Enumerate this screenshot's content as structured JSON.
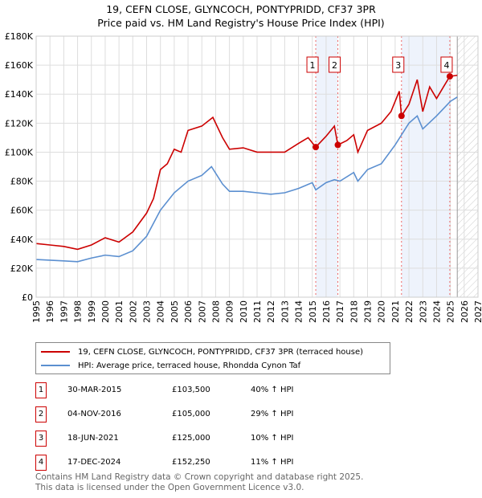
{
  "chart_data": {
    "type": "line",
    "title": "19, CEFN CLOSE, GLYNCOCH, PONTYPRIDD, CF37 3PR",
    "subtitle": "Price paid vs. HM Land Registry's House Price Index (HPI)",
    "xlim": [
      1995,
      2027
    ],
    "ylim": [
      0,
      180000
    ],
    "x_ticks": [
      "1995",
      "1996",
      "1997",
      "1998",
      "1999",
      "2000",
      "2001",
      "2002",
      "2003",
      "2004",
      "2005",
      "2006",
      "2007",
      "2008",
      "2009",
      "2010",
      "2011",
      "2012",
      "2013",
      "2014",
      "2015",
      "2016",
      "2017",
      "2018",
      "2019",
      "2020",
      "2021",
      "2022",
      "2023",
      "2024",
      "2025",
      "2026",
      "2027"
    ],
    "y_ticks": [
      {
        "v": 0,
        "label": "£0"
      },
      {
        "v": 20000,
        "label": "£20K"
      },
      {
        "v": 40000,
        "label": "£40K"
      },
      {
        "v": 60000,
        "label": "£60K"
      },
      {
        "v": 80000,
        "label": "£80K"
      },
      {
        "v": 100000,
        "label": "£100K"
      },
      {
        "v": 120000,
        "label": "£120K"
      },
      {
        "v": 140000,
        "label": "£140K"
      },
      {
        "v": 160000,
        "label": "£160K"
      },
      {
        "v": 180000,
        "label": "£180K"
      }
    ],
    "series": [
      {
        "name": "19, CEFN CLOSE, GLYNCOCH, PONTYPRIDD, CF37 3PR (terraced house)",
        "color": "#cc0000",
        "x": [
          1995,
          1996,
          1997,
          1998,
          1999,
          2000,
          2001,
          2002,
          2003,
          2003.5,
          2004,
          2004.5,
          2005,
          2005.5,
          2006,
          2007,
          2007.8,
          2008.5,
          2009,
          2010,
          2011,
          2012,
          2013,
          2014,
          2014.7,
          2015.25,
          2016,
          2016.6,
          2016.85,
          2017.5,
          2018,
          2018.3,
          2019,
          2020,
          2020.7,
          2021.3,
          2021.46,
          2022,
          2022.6,
          2023,
          2023.5,
          2024,
          2024.5,
          2024.96,
          2025.5
        ],
        "y": [
          37000,
          36000,
          35000,
          33000,
          36000,
          41000,
          38000,
          45000,
          58000,
          68000,
          88000,
          92000,
          102000,
          100000,
          115000,
          118000,
          124000,
          110000,
          102000,
          103000,
          100000,
          100000,
          100000,
          106000,
          110000,
          103500,
          111000,
          118000,
          105000,
          108000,
          112000,
          100000,
          115000,
          120000,
          128000,
          142000,
          125000,
          133000,
          150000,
          128000,
          145000,
          137000,
          145000,
          152250,
          153000
        ]
      },
      {
        "name": "HPI: Average price, terraced house, Rhondda Cynon Taf",
        "color": "#5b8fd0",
        "x": [
          1995,
          1996,
          1997,
          1998,
          1999,
          2000,
          2001,
          2002,
          2003,
          2004,
          2005,
          2006,
          2007,
          2007.7,
          2008.5,
          2009,
          2010,
          2011,
          2012,
          2013,
          2014,
          2015,
          2015.25,
          2016,
          2016.6,
          2017,
          2018,
          2018.3,
          2019,
          2020,
          2021,
          2022,
          2022.6,
          2023,
          2024,
          2025,
          2025.5
        ],
        "y": [
          26000,
          25500,
          25000,
          24500,
          27000,
          29000,
          28000,
          32000,
          42000,
          60000,
          72000,
          80000,
          84000,
          90000,
          78000,
          73000,
          73000,
          72000,
          71000,
          72000,
          75000,
          79000,
          74000,
          79000,
          81000,
          80000,
          86000,
          80000,
          88000,
          92000,
          105000,
          120000,
          125000,
          116000,
          125000,
          135000,
          138000
        ]
      }
    ],
    "sales": [
      {
        "n": "1",
        "x": 2015.25,
        "price": 103500,
        "date": "30-MAR-2015",
        "price_label": "£103,500",
        "hpi": "40% ↑ HPI"
      },
      {
        "n": "2",
        "x": 2016.85,
        "price": 105000,
        "date": "04-NOV-2016",
        "price_label": "£105,000",
        "hpi": "29% ↑ HPI"
      },
      {
        "n": "3",
        "x": 2021.46,
        "price": 125000,
        "date": "18-JUN-2021",
        "price_label": "£125,000",
        "hpi": "10% ↑ HPI"
      },
      {
        "n": "4",
        "x": 2024.96,
        "price": 152250,
        "date": "17-DEC-2024",
        "price_label": "£152,250",
        "hpi": "11% ↑ HPI"
      }
    ],
    "shaded": [
      [
        2015.25,
        2016.85
      ],
      [
        2021.46,
        2024.96
      ]
    ],
    "hatched_from": 2025.5
  },
  "footer": {
    "line1": "Contains HM Land Registry data © Crown copyright and database right 2025.",
    "line2": "This data is licensed under the Open Government Licence v3.0."
  }
}
